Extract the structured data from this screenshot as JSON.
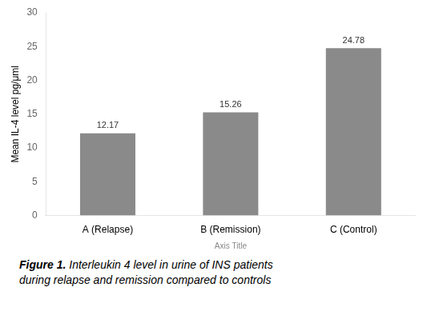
{
  "chart_data": {
    "type": "bar",
    "categories": [
      "A (Relapse)",
      "B (Remission)",
      "C (Control)"
    ],
    "values": [
      12.17,
      15.26,
      24.78
    ],
    "color": "#8a8a8a",
    "ylabel": "Mean IL-4 level pg/μml",
    "xlabel": "Axis Title",
    "ylim": [
      0,
      30
    ],
    "yticks": [
      0,
      5,
      10,
      15,
      20,
      25,
      30
    ],
    "grid": false,
    "data_labels": true,
    "annotations": [
      "Figure 1.",
      "Interleukin 4 level in urine of INS patients",
      "during relapse and remission compared to controls"
    ]
  }
}
